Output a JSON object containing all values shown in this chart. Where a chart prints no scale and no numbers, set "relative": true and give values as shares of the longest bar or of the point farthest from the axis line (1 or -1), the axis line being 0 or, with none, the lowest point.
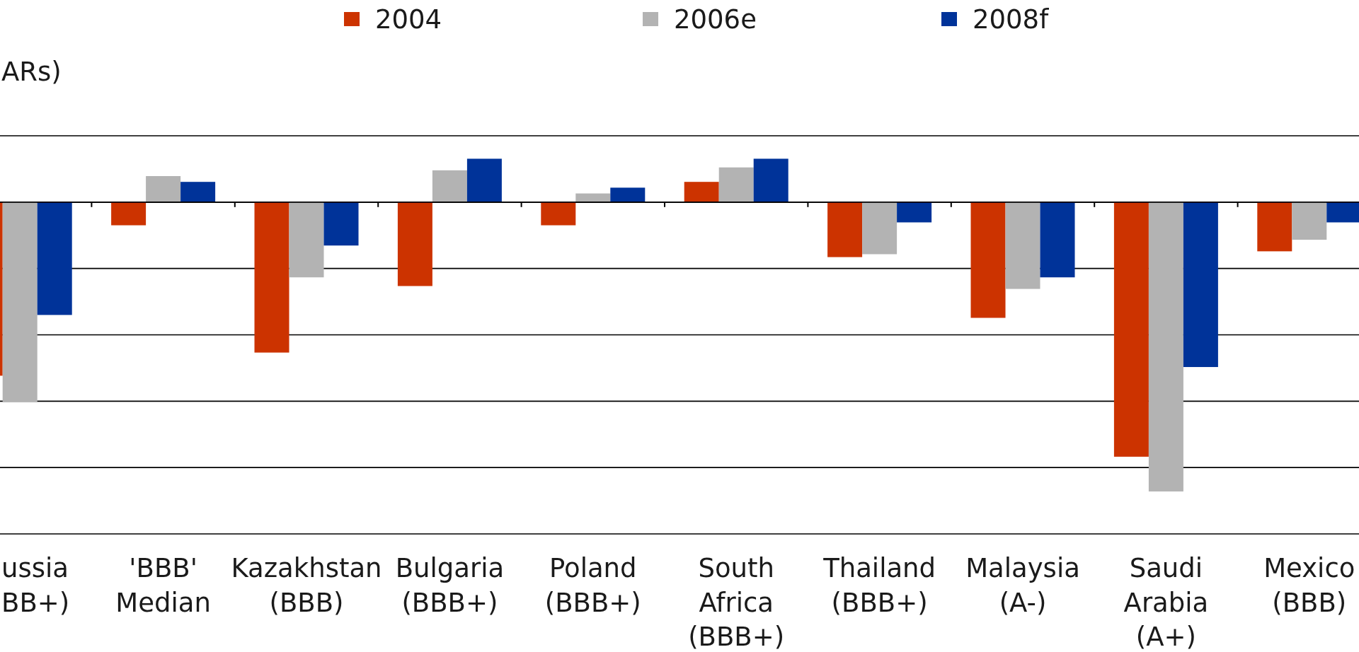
{
  "chart_data": {
    "type": "bar",
    "ylabel": "ARs)",
    "relative": true,
    "grid": "y",
    "legend": "top",
    "categories": [
      "ussia\nBB+)",
      "'BBB'\nMedian",
      "Kazakhstan\n(BBB)",
      "Bulgaria\n(BBB+)",
      "Poland\n(BBB+)",
      "South\nAfrica\n(BBB+)",
      "Thailand\n(BBB+)",
      "Malaysia\n(A-)",
      "Saudi\nArabia\n(A+)",
      "Mexico\n(BBB)"
    ],
    "series": [
      {
        "name": "2004",
        "color": "#cc3300",
        "values": [
          -0.6,
          -0.08,
          -0.52,
          -0.29,
          -0.08,
          0.07,
          -0.19,
          -0.4,
          -0.88,
          -0.17
        ]
      },
      {
        "name": "2006e",
        "color": "#b3b3b3",
        "values": [
          -0.69,
          0.09,
          -0.26,
          0.11,
          0.03,
          0.12,
          -0.18,
          -0.3,
          -1,
          -0.13
        ]
      },
      {
        "name": "2008f",
        "color": "#003399",
        "values": [
          -0.39,
          0.07,
          -0.15,
          0.15,
          0.05,
          0.15,
          -0.07,
          -0.26,
          -0.57,
          -0.07
        ]
      }
    ]
  }
}
